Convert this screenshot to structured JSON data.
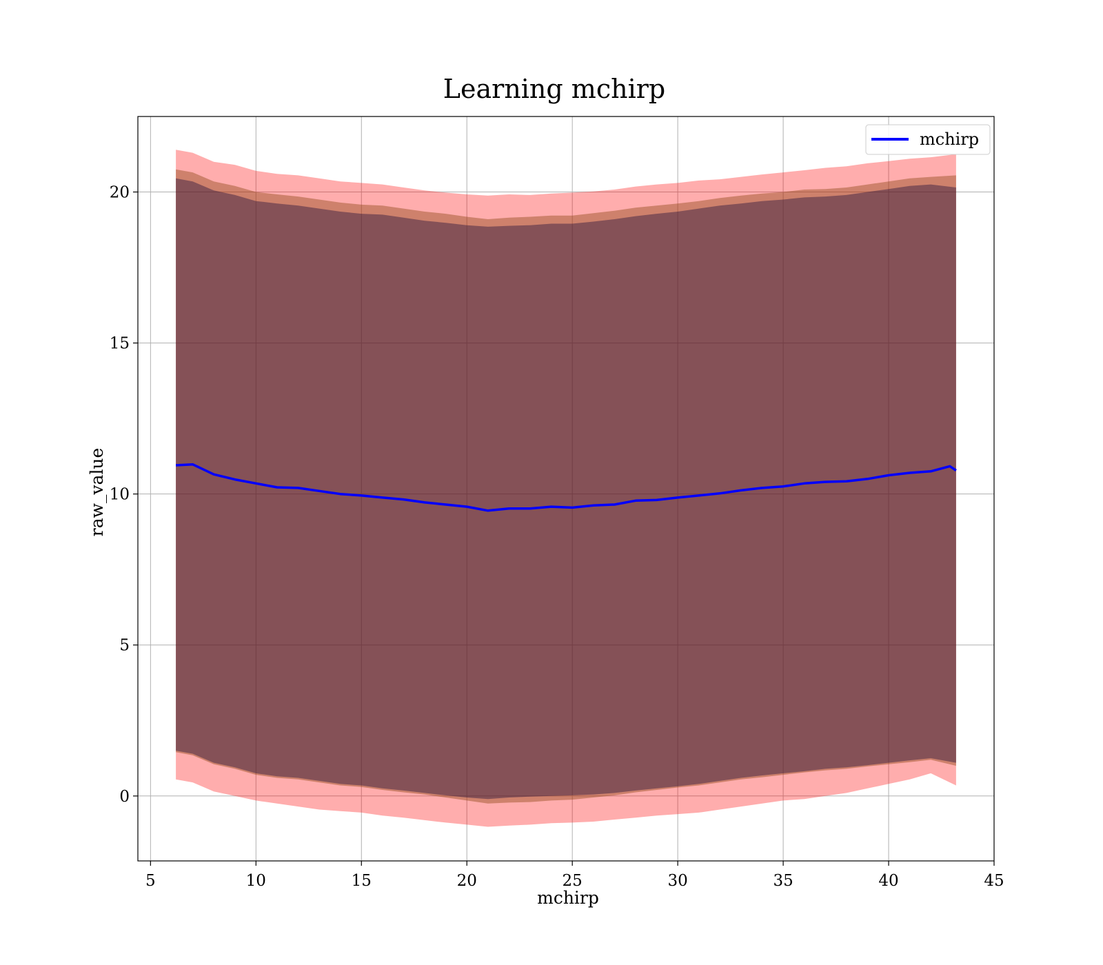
{
  "chart_data": {
    "type": "line",
    "title": "Learning mchirp",
    "xlabel": "mchirp",
    "ylabel": "raw_value",
    "xlim": [
      4.4,
      45
    ],
    "ylim": [
      -2.15,
      22.5
    ],
    "xticks": [
      5,
      10,
      15,
      20,
      25,
      30,
      35,
      40,
      45
    ],
    "yticks": [
      0,
      5,
      10,
      15,
      20
    ],
    "grid": true,
    "legend_position": "top-right",
    "series": [
      {
        "name": "mchirp",
        "color": "#0000ff",
        "x": [
          6.2,
          7.0,
          8.0,
          9.0,
          10.0,
          11.0,
          12.0,
          13.0,
          14.0,
          15.0,
          16.0,
          17.0,
          18.0,
          19.0,
          20.0,
          21.0,
          22.0,
          23.0,
          24.0,
          25.0,
          26.0,
          27.0,
          28.0,
          29.0,
          30.0,
          31.0,
          32.0,
          33.0,
          34.0,
          35.0,
          36.0,
          37.0,
          38.0,
          39.0,
          40.0,
          41.0,
          42.0,
          42.9,
          43.2
        ],
        "y": [
          10.95,
          10.98,
          10.65,
          10.48,
          10.35,
          10.22,
          10.2,
          10.1,
          10.0,
          9.95,
          9.88,
          9.82,
          9.72,
          9.65,
          9.58,
          9.45,
          9.52,
          9.52,
          9.58,
          9.55,
          9.62,
          9.65,
          9.78,
          9.8,
          9.88,
          9.95,
          10.02,
          10.12,
          10.2,
          10.25,
          10.35,
          10.4,
          10.42,
          10.5,
          10.62,
          10.7,
          10.75,
          10.92,
          10.78
        ]
      }
    ],
    "bands": [
      {
        "color": "#ff0000",
        "opacity": 0.32,
        "x": [
          6.2,
          7.0,
          8.0,
          9.0,
          10.0,
          11.0,
          12.0,
          13.0,
          14.0,
          15.0,
          16.0,
          17.0,
          18.0,
          19.0,
          20.0,
          21.0,
          22.0,
          23.0,
          24.0,
          25.0,
          26.0,
          27.0,
          28.0,
          29.0,
          30.0,
          31.0,
          32.0,
          33.0,
          34.0,
          35.0,
          36.0,
          37.0,
          38.0,
          39.0,
          40.0,
          41.0,
          42.0,
          43.2
        ],
        "upper": [
          21.4,
          21.3,
          21.0,
          20.9,
          20.7,
          20.6,
          20.55,
          20.45,
          20.35,
          20.3,
          20.25,
          20.15,
          20.05,
          19.98,
          19.92,
          19.88,
          19.92,
          19.9,
          19.95,
          19.98,
          20.02,
          20.08,
          20.18,
          20.25,
          20.3,
          20.38,
          20.42,
          20.5,
          20.58,
          20.65,
          20.72,
          20.8,
          20.85,
          20.95,
          21.02,
          21.1,
          21.15,
          21.25
        ],
        "lower": [
          0.55,
          0.45,
          0.15,
          0.0,
          -0.15,
          -0.25,
          -0.35,
          -0.45,
          -0.5,
          -0.55,
          -0.65,
          -0.72,
          -0.8,
          -0.88,
          -0.95,
          -1.02,
          -0.98,
          -0.95,
          -0.9,
          -0.88,
          -0.85,
          -0.78,
          -0.72,
          -0.65,
          -0.6,
          -0.55,
          -0.45,
          -0.35,
          -0.25,
          -0.15,
          -0.1,
          0.0,
          0.1,
          0.25,
          0.4,
          0.55,
          0.75,
          0.35
        ]
      },
      {
        "color": "#8b4513",
        "opacity": 0.42,
        "x": [
          6.2,
          7.0,
          8.0,
          9.0,
          10.0,
          11.0,
          12.0,
          13.0,
          14.0,
          15.0,
          16.0,
          17.0,
          18.0,
          19.0,
          20.0,
          21.0,
          22.0,
          23.0,
          24.0,
          25.0,
          26.0,
          27.0,
          28.0,
          29.0,
          30.0,
          31.0,
          32.0,
          33.0,
          34.0,
          35.0,
          36.0,
          37.0,
          38.0,
          39.0,
          40.0,
          41.0,
          42.0,
          43.2
        ],
        "upper": [
          20.75,
          20.65,
          20.35,
          20.2,
          20.0,
          19.92,
          19.85,
          19.75,
          19.65,
          19.58,
          19.55,
          19.45,
          19.35,
          19.28,
          19.18,
          19.1,
          19.15,
          19.18,
          19.22,
          19.22,
          19.3,
          19.38,
          19.48,
          19.55,
          19.62,
          19.7,
          19.8,
          19.88,
          19.95,
          20.0,
          20.08,
          20.1,
          20.15,
          20.25,
          20.35,
          20.45,
          20.5,
          20.55
        ],
        "lower": [
          1.45,
          1.35,
          1.05,
          0.9,
          0.7,
          0.6,
          0.55,
          0.45,
          0.35,
          0.3,
          0.2,
          0.12,
          0.05,
          -0.05,
          -0.15,
          -0.25,
          -0.22,
          -0.2,
          -0.15,
          -0.12,
          -0.05,
          0.02,
          0.12,
          0.2,
          0.28,
          0.35,
          0.45,
          0.55,
          0.62,
          0.7,
          0.78,
          0.85,
          0.9,
          0.98,
          1.05,
          1.12,
          1.2,
          1.0
        ]
      },
      {
        "color": "#1a0a3a",
        "opacity": 0.4,
        "x": [
          6.2,
          7.0,
          8.0,
          9.0,
          10.0,
          11.0,
          12.0,
          13.0,
          14.0,
          15.0,
          16.0,
          17.0,
          18.0,
          19.0,
          20.0,
          21.0,
          22.0,
          23.0,
          24.0,
          25.0,
          26.0,
          27.0,
          28.0,
          29.0,
          30.0,
          31.0,
          32.0,
          33.0,
          34.0,
          35.0,
          36.0,
          37.0,
          38.0,
          39.0,
          40.0,
          41.0,
          42.0,
          43.2
        ],
        "upper": [
          20.45,
          20.35,
          20.05,
          19.9,
          19.7,
          19.62,
          19.55,
          19.45,
          19.35,
          19.28,
          19.25,
          19.15,
          19.05,
          18.98,
          18.9,
          18.85,
          18.88,
          18.9,
          18.95,
          18.95,
          19.02,
          19.1,
          19.2,
          19.28,
          19.35,
          19.45,
          19.55,
          19.62,
          19.7,
          19.75,
          19.82,
          19.85,
          19.9,
          20.0,
          20.1,
          20.2,
          20.25,
          20.15
        ],
        "lower": [
          1.5,
          1.4,
          1.1,
          0.95,
          0.75,
          0.65,
          0.6,
          0.5,
          0.4,
          0.35,
          0.25,
          0.18,
          0.1,
          0.02,
          -0.05,
          -0.1,
          -0.05,
          -0.02,
          0.0,
          0.02,
          0.05,
          0.1,
          0.18,
          0.25,
          0.32,
          0.4,
          0.5,
          0.6,
          0.68,
          0.75,
          0.82,
          0.9,
          0.95,
          1.02,
          1.1,
          1.18,
          1.25,
          1.1
        ]
      }
    ]
  }
}
